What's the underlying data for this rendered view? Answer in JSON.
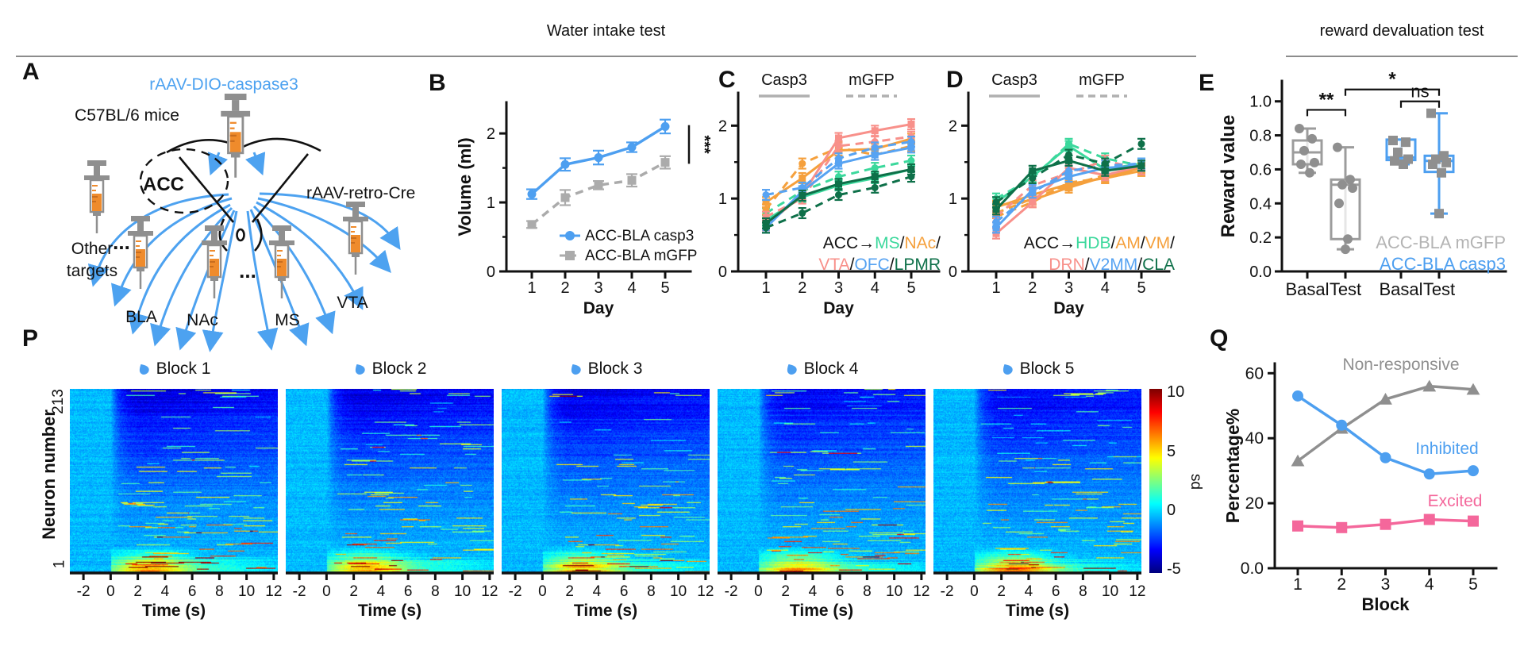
{
  "figure": {
    "section_water": "Water intake test",
    "section_reward": "reward devaluation test"
  },
  "panel_labels": {
    "A": "A",
    "B": "B",
    "C": "C",
    "D": "D",
    "E": "E",
    "P": "P",
    "Q": "Q"
  },
  "colors": {
    "casp3_blue": "#4d9ff0",
    "mgfp_gray": "#ababab",
    "mint_green": "#3bd89c",
    "orange": "#f5a03c",
    "salmon": "#f8908a",
    "light_blue": "#57a3f2",
    "dark_green": "#0e7049",
    "pink": "#f4679b",
    "mid_gray": "#8f8f8f",
    "syringe_orange": "#ef8b2c",
    "fiber_blue": "#4da2f0"
  },
  "panelA": {
    "label": "A",
    "aav_dio": "rAAV-DIO-caspase3",
    "mice": "C57BL/6 mice",
    "acc": "ACC",
    "aav_retro": "rAAV-retro-Cre",
    "other_line1": "Other",
    "other_line2": "targets",
    "dots_left": "...",
    "dots_mid": "...",
    "target_bla": "BLA",
    "target_nac": "NAc",
    "target_ms": "MS",
    "target_vta": "VTA"
  },
  "chart_data": [
    {
      "id": "B",
      "type": "line",
      "xlabel": "Day",
      "ylabel": "Volume (ml)",
      "x": [
        1,
        2,
        3,
        4,
        5
      ],
      "yticks": [
        0,
        1,
        2
      ],
      "yminor": [
        0.5,
        1.5
      ],
      "ylim": [
        0,
        2.45
      ],
      "series": [
        {
          "name": "ACC-BLA casp3",
          "color": "#4d9ff0",
          "marker": "circle",
          "dashed": false,
          "values": [
            1.12,
            1.55,
            1.65,
            1.8,
            2.1
          ],
          "errors": [
            0.07,
            0.09,
            0.1,
            0.07,
            0.1
          ]
        },
        {
          "name": "ACC-BLA mGFP",
          "color": "#ababab",
          "marker": "square",
          "dashed": true,
          "values": [
            0.68,
            1.07,
            1.25,
            1.32,
            1.58
          ],
          "errors": [
            0.05,
            0.11,
            0.06,
            0.09,
            0.09
          ]
        }
      ],
      "significance": "***"
    },
    {
      "id": "C",
      "type": "line",
      "xlabel": "Day",
      "header": {
        "solid": "Casp3",
        "dashed": "mGFP"
      },
      "x": [
        1,
        2,
        3,
        4,
        5
      ],
      "yticks": [
        0,
        1,
        2
      ],
      "yminor": [
        0.5,
        1.5
      ],
      "ylim": [
        0,
        2.45
      ],
      "err": 0.07,
      "series": [
        {
          "name": "ACC-MS casp3",
          "color": "#3bd89c",
          "marker": "square",
          "dashed": false,
          "values": [
            0.7,
            1.02,
            1.18,
            1.28,
            1.4
          ]
        },
        {
          "name": "ACC-MS mGFP",
          "color": "#3bd89c",
          "marker": "circle",
          "dashed": true,
          "values": [
            0.8,
            1.1,
            1.3,
            1.42,
            1.52
          ]
        },
        {
          "name": "ACC-NAc casp3",
          "color": "#f5a03c",
          "marker": "square",
          "dashed": false,
          "values": [
            0.95,
            1.28,
            1.66,
            1.68,
            1.82
          ]
        },
        {
          "name": "ACC-NAc mGFP",
          "color": "#f5a03c",
          "marker": "circle",
          "dashed": true,
          "values": [
            0.85,
            1.48,
            1.7,
            1.6,
            1.72
          ]
        },
        {
          "name": "ACC-VTA casp3",
          "color": "#f8908a",
          "marker": "square",
          "dashed": false,
          "values": [
            0.63,
            1.05,
            1.83,
            1.93,
            2.02
          ]
        },
        {
          "name": "ACC-VTA mGFP",
          "color": "#f8908a",
          "marker": "circle",
          "dashed": true,
          "values": [
            0.75,
            1.0,
            1.72,
            1.78,
            1.85
          ]
        },
        {
          "name": "ACC-OFC casp3",
          "color": "#57a3f2",
          "marker": "square",
          "dashed": false,
          "values": [
            0.6,
            1.1,
            1.48,
            1.6,
            1.7
          ]
        },
        {
          "name": "ACC-OFC mGFP",
          "color": "#57a3f2",
          "marker": "circle",
          "dashed": true,
          "values": [
            1.05,
            1.15,
            1.55,
            1.7,
            1.78
          ]
        },
        {
          "name": "ACC-LPMR casp3",
          "color": "#0e7049",
          "marker": "square",
          "dashed": false,
          "values": [
            0.66,
            1.04,
            1.2,
            1.3,
            1.4
          ]
        },
        {
          "name": "ACC-LPMR mGFP",
          "color": "#0e7049",
          "marker": "circle",
          "dashed": true,
          "values": [
            0.6,
            0.8,
            1.05,
            1.15,
            1.3
          ]
        }
      ],
      "legend_rich": [
        [
          {
            "t": "ACC→",
            "c": "#111111"
          },
          {
            "t": "MS",
            "c": "#3bd89c"
          },
          {
            "t": "/",
            "c": "#111111"
          },
          {
            "t": "NAc",
            "c": "#f5a03c"
          },
          {
            "t": "/",
            "c": "#111111"
          }
        ],
        [
          {
            "t": "VTA",
            "c": "#f8908a"
          },
          {
            "t": "/",
            "c": "#111111"
          },
          {
            "t": "OFC",
            "c": "#57a3f2"
          },
          {
            "t": "/",
            "c": "#111111"
          },
          {
            "t": "LPMR",
            "c": "#0e7049"
          }
        ]
      ]
    },
    {
      "id": "D",
      "type": "line",
      "xlabel": "Day",
      "header": {
        "solid": "Casp3",
        "dashed": "mGFP"
      },
      "x": [
        1,
        2,
        3,
        4,
        5
      ],
      "yticks": [
        0,
        1,
        2
      ],
      "yminor": [
        0.5,
        1.5
      ],
      "ylim": [
        0,
        2.45
      ],
      "err": 0.07,
      "series": [
        {
          "name": "ACC-HDB casp3",
          "color": "#3bd89c",
          "marker": "square",
          "dashed": false,
          "values": [
            0.95,
            1.3,
            1.72,
            1.4,
            1.48
          ]
        },
        {
          "name": "ACC-HDB mGFP",
          "color": "#3bd89c",
          "marker": "circle",
          "dashed": true,
          "values": [
            1.0,
            1.28,
            1.75,
            1.55,
            1.45
          ]
        },
        {
          "name": "ACC-AM casp3",
          "color": "#f5a03c",
          "marker": "square",
          "dashed": false,
          "values": [
            0.88,
            1.05,
            1.2,
            1.28,
            1.38
          ]
        },
        {
          "name": "ACC-AM mGFP",
          "color": "#f5a03c",
          "marker": "circle",
          "dashed": true,
          "values": [
            0.8,
            1.0,
            1.18,
            1.32,
            1.4
          ]
        },
        {
          "name": "ACC-VM casp3",
          "color": "#f5a03c",
          "marker": "square",
          "dashed": false,
          "values": [
            0.9,
            0.98,
            1.15,
            1.3,
            1.42
          ]
        },
        {
          "name": "ACC-VM mGFP",
          "color": "#f5a03c",
          "marker": "circle",
          "dashed": true,
          "values": [
            0.75,
            0.95,
            1.22,
            1.28,
            1.38
          ]
        },
        {
          "name": "ACC-DRN casp3",
          "color": "#f8908a",
          "marker": "square",
          "dashed": false,
          "values": [
            0.52,
            0.95,
            1.42,
            1.32,
            1.45
          ]
        },
        {
          "name": "ACC-DRN mGFP",
          "color": "#f8908a",
          "marker": "circle",
          "dashed": true,
          "values": [
            0.75,
            1.18,
            1.35,
            1.52,
            1.4
          ]
        },
        {
          "name": "ACC-V2MM casp3",
          "color": "#57a3f2",
          "marker": "square",
          "dashed": false,
          "values": [
            0.6,
            1.12,
            1.3,
            1.42,
            1.45
          ]
        },
        {
          "name": "ACC-V2MM mGFP",
          "color": "#57a3f2",
          "marker": "circle",
          "dashed": true,
          "values": [
            0.68,
            1.08,
            1.38,
            1.45,
            1.48
          ]
        },
        {
          "name": "ACC-CLA casp3",
          "color": "#0e7049",
          "marker": "square",
          "dashed": false,
          "values": [
            0.85,
            1.38,
            1.52,
            1.38,
            1.45
          ]
        },
        {
          "name": "ACC-CLA mGFP",
          "color": "#0e7049",
          "marker": "circle",
          "dashed": true,
          "values": [
            0.95,
            1.28,
            1.6,
            1.48,
            1.75
          ]
        }
      ],
      "legend_rich": [
        [
          {
            "t": "ACC→",
            "c": "#111111"
          },
          {
            "t": "HDB",
            "c": "#3bd89c"
          },
          {
            "t": "/",
            "c": "#111111"
          },
          {
            "t": "AM",
            "c": "#f5a03c"
          },
          {
            "t": "/",
            "c": "#111111"
          },
          {
            "t": "VM",
            "c": "#f5a03c"
          },
          {
            "t": "/",
            "c": "#111111"
          }
        ],
        [
          {
            "t": "DRN",
            "c": "#f8908a"
          },
          {
            "t": "/",
            "c": "#111111"
          },
          {
            "t": "V2MM",
            "c": "#57a3f2"
          },
          {
            "t": "/",
            "c": "#111111"
          },
          {
            "t": "CLA",
            "c": "#0e7049"
          }
        ]
      ]
    },
    {
      "id": "E",
      "type": "box",
      "ylabel": "Reward value",
      "ytick_labels": [
        "0.0",
        "0.2",
        "0.4",
        "0.6",
        "0.8",
        "1.0"
      ],
      "yticks": [
        0,
        0.2,
        0.4,
        0.6,
        0.8,
        1.0
      ],
      "ylim": [
        0,
        1.12
      ],
      "categories": [
        "Basal",
        "Test",
        "Basal",
        "Test"
      ],
      "boxes": [
        {
          "group": "ACC-BLA mGFP",
          "color": "#9c9c9c",
          "lo": 0.58,
          "q1": 0.63,
          "median": 0.7,
          "q3": 0.77,
          "hi": 0.84,
          "points": [
            0.84,
            0.78,
            0.71,
            0.64,
            0.63,
            0.58
          ]
        },
        {
          "group": "ACC-BLA mGFP",
          "color": "#9c9c9c",
          "lo": 0.13,
          "q1": 0.19,
          "median": 0.51,
          "q3": 0.54,
          "hi": 0.73,
          "points": [
            0.73,
            0.54,
            0.51,
            0.49,
            0.4,
            0.19,
            0.13
          ]
        },
        {
          "group": "ACC-BLA casp3",
          "color": "#4d9ff0",
          "lo": 0.63,
          "q1": 0.655,
          "median": 0.67,
          "q3": 0.775,
          "hi": 0.775,
          "points": [
            0.77,
            0.76,
            0.7,
            0.66,
            0.65,
            0.63
          ]
        },
        {
          "group": "ACC-BLA casp3",
          "color": "#4d9ff0",
          "lo": 0.34,
          "q1": 0.585,
          "median": 0.65,
          "q3": 0.68,
          "hi": 0.93,
          "points": [
            0.93,
            0.68,
            0.66,
            0.64,
            0.63,
            0.58,
            0.34
          ]
        }
      ],
      "sig": [
        {
          "label": "**",
          "from": 0,
          "to": 1,
          "y": 0.95
        },
        {
          "label": "ns",
          "from": 2,
          "to": 3,
          "y": 1.0
        },
        {
          "label": "*",
          "from": 1,
          "to": 3,
          "y": 1.07
        }
      ],
      "legend": [
        {
          "t": "ACC-BLA mGFP",
          "c": "#b4b4b4"
        },
        {
          "t": "ACC-BLA casp3",
          "c": "#4d9ff0"
        }
      ]
    },
    {
      "id": "P",
      "type": "heatmap",
      "blocks": [
        "Block 1",
        "Block 2",
        "Block 3",
        "Block 4",
        "Block 5"
      ],
      "ylabel": "Neuron number",
      "y_top": "213",
      "y_bottom": "1",
      "neurons": 213,
      "xticks": [
        -2,
        0,
        2,
        4,
        6,
        8,
        10,
        12
      ],
      "xlabel": "Time (s)",
      "trange": [
        -3,
        12.3
      ],
      "colorbar": {
        "ticks": [
          "10",
          "5",
          "0",
          "-5"
        ],
        "label": "sd",
        "vmin": -5,
        "vmax": 10
      }
    },
    {
      "id": "Q",
      "type": "line",
      "xlabel": "Block",
      "ylabel": "Percentage%",
      "x": [
        1,
        2,
        3,
        4,
        5
      ],
      "yticks": [
        0,
        20,
        40,
        60
      ],
      "ytick_labels": [
        "0.0",
        "20",
        "40",
        "60"
      ],
      "ylim": [
        0,
        63
      ],
      "series": [
        {
          "name": "Non-responsive",
          "color": "#8f8f8f",
          "marker": "triangle",
          "dashed": false,
          "values": [
            33,
            43,
            52,
            56,
            55
          ]
        },
        {
          "name": "Inhibited",
          "color": "#4d9ff0",
          "marker": "circle",
          "dashed": false,
          "values": [
            53,
            44,
            34,
            29,
            30
          ]
        },
        {
          "name": "Excited",
          "color": "#f4679b",
          "marker": "square",
          "dashed": false,
          "values": [
            13,
            12.5,
            13.5,
            15,
            14.5
          ]
        }
      ]
    }
  ]
}
